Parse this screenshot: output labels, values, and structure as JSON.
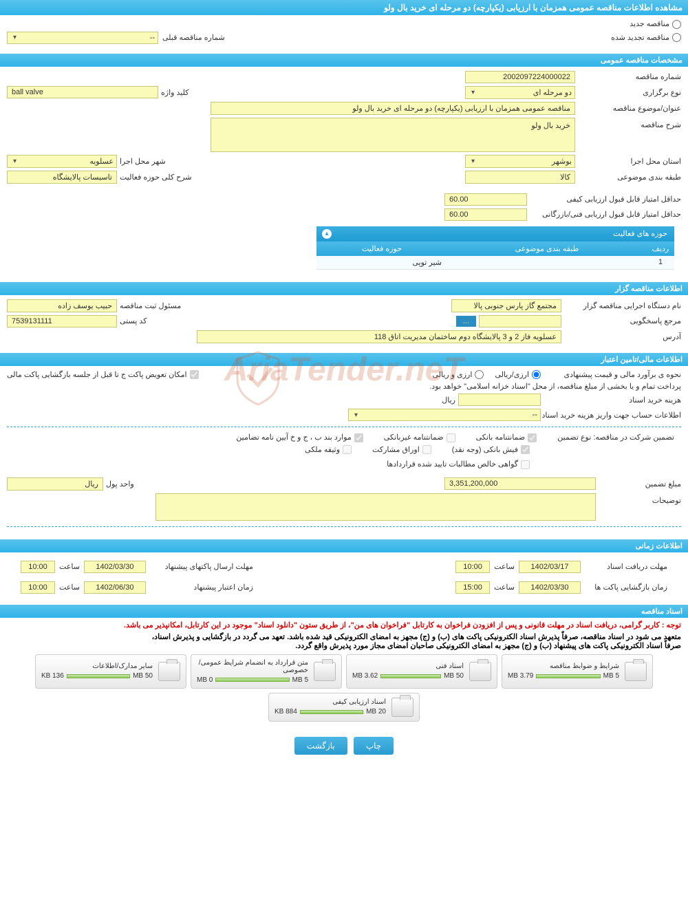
{
  "header": {
    "title": "مشاهده اطلاعات مناقصه عمومی همزمان با ارزیابی (یکپارچه) دو مرحله ای خرید بال ولو"
  },
  "new_auction": {
    "radio_new": "مناقصه جدید",
    "radio_renewed": "مناقصه تجدید شده",
    "prev_number_label": "شماره مناقصه قبلی",
    "prev_number_value": "--"
  },
  "general_info": {
    "section_title": "مشخصات مناقصه عمومی",
    "number_label": "شماره مناقصه",
    "number_value": "2002097224000022",
    "type_label": "نوع برگزاری",
    "type_value": "دو مرحله ای",
    "keyword_label": "کلید واژه",
    "keyword_value": "ball valve",
    "title_label": "عنوان/موضوع مناقصه",
    "title_value": "مناقصه عمومی همزمان با ارزیابی (یکپارچه) دو مرحله ای خرید بال ولو",
    "desc_label": "شرح مناقصه",
    "desc_value": "خرید بال ولو",
    "province_label": "استان محل اجرا",
    "province_value": "بوشهر",
    "city_label": "شهر محل اجرا",
    "city_value": "عسلویه",
    "subject_label": "طبقه بندی موضوعی",
    "subject_value": "کالا",
    "scope_label": "شرح کلی حوزه فعالیت",
    "scope_value": "تاسیسات پالایشگاه",
    "quality_score_label": "حداقل امتیاز قابل قبول ارزیابی کیفی",
    "quality_score_value": "60.00",
    "tech_score_label": "حداقل امتیاز قابل قبول ارزیابی فنی/بازرگانی",
    "tech_score_value": "60.00"
  },
  "activity_table": {
    "header": "حوزه های فعالیت",
    "col_row": "ردیف",
    "col_subject": "طبقه بندی موضوعی",
    "col_scope": "حوزه فعالیت",
    "rows": [
      {
        "num": "1",
        "subject": "",
        "scope": "شیر توپی"
      }
    ]
  },
  "organizer": {
    "section_title": "اطلاعات مناقصه گزار",
    "org_label": "نام دستگاه اجرایی مناقصه گزار",
    "org_value": "مجتمع گاز پارس جنوبی  پالا",
    "responsible_label": "مسئول ثبت مناقصه",
    "responsible_value": "حبیب یوسف زاده",
    "contact_label": "مرجع پاسخگویی",
    "contact_value": "",
    "browse_btn": "...",
    "postal_label": "کد پستی",
    "postal_value": "7539131111",
    "address_label": "آدرس",
    "address_value": "عسلویه فاز 2 و 3 پالایشگاه دوم ساختمان مدیریت اتاق 118"
  },
  "financial": {
    "section_title": "اطلاعات مالی/تامین اعتبار",
    "estimate_label": "نحوه ی برآورد مالی و قیمت پیشنهادی",
    "radio_rial": "ارزی/ریالی",
    "radio_fx": "ارزی و ریالی",
    "swap_label": "امکان تعویض پاکت ج تا قبل از جلسه بازگشایی پاکت مالی",
    "payment_note": "پرداخت تمام و یا بخشی از مبلغ مناقصه، از محل \"اسناد خزانه اسلامی\" خواهد بود.",
    "doc_cost_label": "هزینه خرید اسناد",
    "doc_cost_value": "",
    "doc_cost_unit": "ریال",
    "account_label": "اطلاعات حساب جهت واریز هزینه خرید اسناد",
    "account_value": "--"
  },
  "guarantee": {
    "intro_label": "تضمین شرکت در مناقصه:   نوع تضمین",
    "cb_bank_guarantee": "ضمانتنامه بانکی",
    "cb_nonbank_guarantee": "ضمانتنامه غیربانکی",
    "cb_regulation": "موارد بند ب ، ج و خ آیین نامه تضامین",
    "cb_bank_receipt": "فیش بانکی (وجه نقد)",
    "cb_bonds": "اوراق مشارکت",
    "cb_property": "وثیقه ملکی",
    "cb_net_receivables": "گواهی خالص مطالبات تایید شده قراردادها",
    "amount_label": "مبلغ تضمین",
    "amount_value": "3,351,200,000",
    "unit_label": "واحد پول",
    "unit_value": "ریال",
    "notes_label": "توضیحات"
  },
  "timing": {
    "section_title": "اطلاعات زمانی",
    "doc_deadline_label": "مهلت دریافت اسناد",
    "doc_deadline_date": "1402/03/17",
    "time_label": "ساعت",
    "doc_deadline_time": "10:00",
    "proposal_deadline_label": "مهلت ارسال پاکتهای پیشنهاد",
    "proposal_deadline_date": "1402/03/30",
    "proposal_deadline_time": "10:00",
    "opening_label": "زمان بازگشایی پاکت ها",
    "opening_date": "1402/03/30",
    "opening_time": "15:00",
    "validity_label": "زمان اعتبار پیشنهاد",
    "validity_date": "1402/06/30",
    "validity_time": "10:00"
  },
  "docs": {
    "section_title": "اسناد مناقصه",
    "notice_red": "توجه : کاربر گرامی، دریافت اسناد در مهلت قانونی و پس از افزودن فراخوان به کارتابل \"فراخوان های من\"، از طریق ستون \"دانلود اسناد\" موجود در این کارتابل، امکانپذیر می باشد.",
    "notice_black_1": "متعهد می شود در اسناد مناقصه، صرفاً پذیرش اسناد الکترونیکی پاکت های (ب) و (ج) مجهز به امضای الکترونیکی قید شده باشد. تعهد می گردد در بازگشایی و پذیرش اسناد،",
    "notice_black_2": "صرفاً اسناد الکترونیکی پاکت های پیشنهاد (ب) و (ج) مجهز به امضای الکترونیکی صاحبان امضای مجاز مورد پذیرش واقع گردد.",
    "files": [
      {
        "title": "شرایط و ضوابط مناقصه",
        "size": "3.79 MB",
        "limit": "5 MB"
      },
      {
        "title": "اسناد فنی",
        "size": "3.62 MB",
        "limit": "50 MB"
      },
      {
        "title": "متن قرارداد به انضمام شرایط عمومی/خصوصی",
        "size": "0 MB",
        "limit": "5 MB"
      },
      {
        "title": "سایر مدارک/اطلاعات",
        "size": "136 KB",
        "limit": "50 MB"
      },
      {
        "title": "اسناد ارزیابی کیفی",
        "size": "884 KB",
        "limit": "20 MB"
      }
    ]
  },
  "buttons": {
    "print": "چاپ",
    "back": "بازگشت"
  },
  "watermark": "AriaTender.neT"
}
